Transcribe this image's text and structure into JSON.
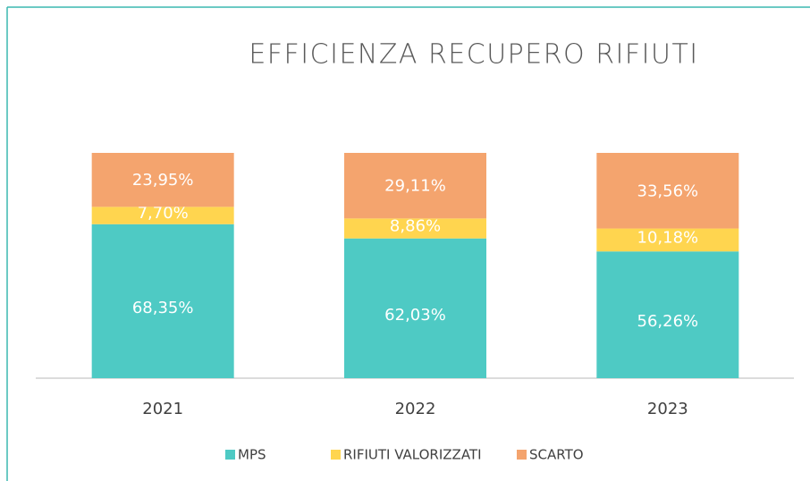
{
  "chart_data": {
    "type": "stacked_bar",
    "title": "EFFICIENZA RECUPERO RIFIUTI",
    "categories": [
      "2021",
      "2022",
      "2023"
    ],
    "series": [
      {
        "name": "MPS",
        "color": "#4ecac4",
        "values": [
          68.35,
          62.03,
          56.26
        ],
        "value_labels": [
          "68,35%",
          "62,03%",
          "56,26%"
        ]
      },
      {
        "name": "RIFIUTI VALORIZZATI",
        "color": "#ffd54f",
        "values": [
          7.7,
          8.86,
          10.18
        ],
        "value_labels": [
          "7,70%",
          "8,86%",
          "10,18%"
        ]
      },
      {
        "name": "SCARTO",
        "color": "#f4a46e",
        "values": [
          23.95,
          29.11,
          33.56
        ],
        "value_labels": [
          "23,95%",
          "29,11%",
          "33,56%"
        ]
      }
    ],
    "legend": "bottom"
  }
}
